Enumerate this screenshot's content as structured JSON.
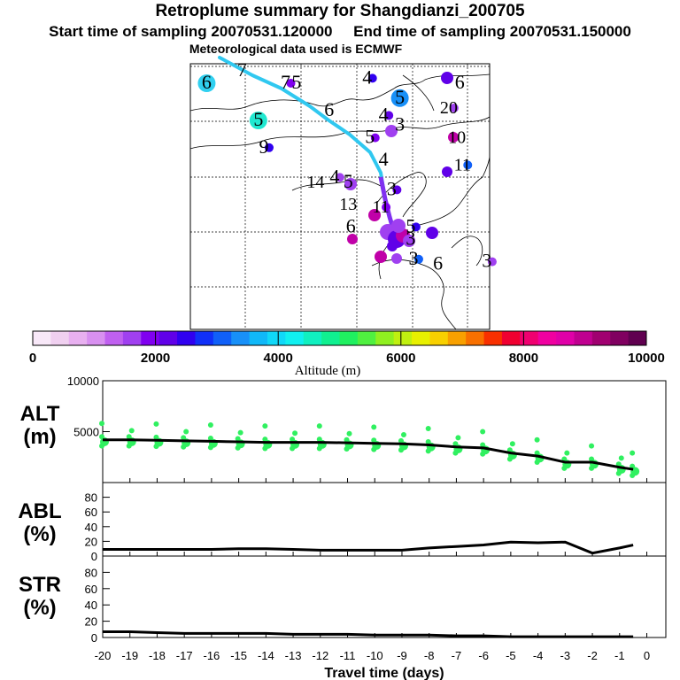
{
  "title": "Retroplume summary for Shangdianzi_200705",
  "subtitle_left": "Start time of sampling 20070531.120000",
  "subtitle_right": "End time of sampling 20070531.150000",
  "subtitle_met": "Meteorological data used is ECMWF",
  "colors": {
    "scale": [
      "#f8e8f8",
      "#f0d0f0",
      "#e8b0f0",
      "#d890f0",
      "#c060f0",
      "#a040f0",
      "#8000f0",
      "#6000e8",
      "#3000f0",
      "#1030f8",
      "#1060f8",
      "#1890f8",
      "#10b8f8",
      "#10d8f8",
      "#10f0f0",
      "#10f0c0",
      "#10f090",
      "#20f060",
      "#50f040",
      "#90f020",
      "#c0f010",
      "#e8f000",
      "#f8d000",
      "#f8a000",
      "#f87000",
      "#f83000",
      "#f00030",
      "#f00070",
      "#f000a0",
      "#e000a8",
      "#c00090",
      "#a00070",
      "#800060",
      "#600050"
    ],
    "trajectory": "#30c8f0",
    "scatter": "#30f060"
  },
  "map": {
    "labels": [
      {
        "text": "6",
        "lon": 0.06,
        "lat": 0.05,
        "bg": "#30d0f0"
      },
      {
        "text": "7",
        "lon": 0.19,
        "lat": 0.0
      },
      {
        "text": "7",
        "lon": 0.35,
        "lat": 0.05
      },
      {
        "text": "5",
        "lon": 0.39,
        "lat": 0.05
      },
      {
        "text": "4",
        "lon": 0.65,
        "lat": 0.03
      },
      {
        "text": "6",
        "lon": 0.99,
        "lat": 0.05
      },
      {
        "text": "5",
        "lon": 0.77,
        "lat": 0.11,
        "bg": "#1890f8"
      },
      {
        "text": "6",
        "lon": 0.51,
        "lat": 0.16
      },
      {
        "text": "20",
        "lon": 0.95,
        "lat": 0.15
      },
      {
        "text": "5",
        "lon": 0.25,
        "lat": 0.2,
        "bg": "#20e8d0"
      },
      {
        "text": "4",
        "lon": 0.71,
        "lat": 0.18
      },
      {
        "text": "3",
        "lon": 0.77,
        "lat": 0.22
      },
      {
        "text": "5",
        "lon": 0.66,
        "lat": 0.27
      },
      {
        "text": "10",
        "lon": 0.98,
        "lat": 0.27
      },
      {
        "text": "9",
        "lon": 0.27,
        "lat": 0.31
      },
      {
        "text": "4",
        "lon": 0.71,
        "lat": 0.36
      },
      {
        "text": "11",
        "lon": 1.0,
        "lat": 0.38
      },
      {
        "text": "14",
        "lon": 0.46,
        "lat": 0.45
      },
      {
        "text": "4",
        "lon": 0.53,
        "lat": 0.43
      },
      {
        "text": "5",
        "lon": 0.58,
        "lat": 0.45
      },
      {
        "text": "3",
        "lon": 0.74,
        "lat": 0.48
      },
      {
        "text": "13",
        "lon": 0.58,
        "lat": 0.54
      },
      {
        "text": "11",
        "lon": 0.7,
        "lat": 0.55
      },
      {
        "text": "6",
        "lon": 0.59,
        "lat": 0.63
      },
      {
        "text": "5",
        "lon": 0.81,
        "lat": 0.63
      },
      {
        "text": "3",
        "lon": 0.81,
        "lat": 0.68
      },
      {
        "text": "3",
        "lon": 0.82,
        "lat": 0.76
      },
      {
        "text": "6",
        "lon": 0.91,
        "lat": 0.78
      },
      {
        "text": "3",
        "lon": 1.09,
        "lat": 0.77
      }
    ]
  },
  "colorbar": {
    "ticks": [
      "0",
      "2000",
      "4000",
      "6000",
      "8000",
      "10000"
    ],
    "label": "Altitude (m)"
  },
  "chart_data": [
    {
      "type": "line",
      "panel_label": "ALT\n(m)",
      "label_line1": "ALT",
      "label_line2": "(m)",
      "x": [
        -20,
        -19,
        -18,
        -17,
        -16,
        -15,
        -14,
        -13,
        -12,
        -11,
        -10,
        -9,
        -8,
        -7,
        -6,
        -5,
        -4,
        -3,
        -2,
        -1,
        -0.5
      ],
      "values": [
        4200,
        4200,
        4150,
        4100,
        4050,
        4000,
        3950,
        3950,
        3950,
        3900,
        3850,
        3800,
        3700,
        3500,
        3400,
        2900,
        2600,
        2000,
        2000,
        1500,
        1300
      ],
      "ylim": [
        0,
        10000
      ],
      "yticks": [
        "10000",
        "5000"
      ],
      "scatter_note": "green dots = retroplume particle altitudes"
    },
    {
      "type": "line",
      "label_line1": "ABL",
      "label_line2": "(%)",
      "x": [
        -20,
        -19,
        -18,
        -17,
        -16,
        -15,
        -14,
        -13,
        -12,
        -11,
        -10,
        -9,
        -8,
        -7,
        -6,
        -5,
        -4,
        -3,
        -2,
        -1,
        -0.5
      ],
      "values": [
        9,
        9,
        9,
        9,
        9,
        10,
        10,
        9,
        8,
        8,
        8,
        8,
        11,
        13,
        15,
        19,
        18,
        19,
        4,
        11,
        15
      ],
      "ylim": [
        0,
        100
      ],
      "yticks": [
        "80",
        "60",
        "40",
        "20",
        "0"
      ]
    },
    {
      "type": "line",
      "label_line1": "STR",
      "label_line2": "(%)",
      "x": [
        -20,
        -19,
        -18,
        -17,
        -16,
        -15,
        -14,
        -13,
        -12,
        -11,
        -10,
        -9,
        -8,
        -7,
        -6,
        -5,
        -4,
        -3,
        -2,
        -1,
        -0.5
      ],
      "values": [
        7,
        7,
        6,
        5,
        5,
        5,
        5,
        4,
        4,
        4,
        3,
        3,
        3,
        2,
        2,
        1,
        1,
        1,
        1,
        1,
        1
      ],
      "ylim": [
        0,
        100
      ],
      "yticks": [
        "80",
        "60",
        "40",
        "20",
        "0"
      ]
    }
  ],
  "xaxis": {
    "ticks": [
      "-20",
      "-19",
      "-18",
      "-17",
      "-16",
      "-15",
      "-14",
      "-13",
      "-12",
      "-11",
      "-10",
      "-9",
      "-8",
      "-7",
      "-6",
      "-5",
      "-4",
      "-3",
      "-2",
      "-1",
      "0"
    ],
    "label": "Travel time (days)"
  }
}
